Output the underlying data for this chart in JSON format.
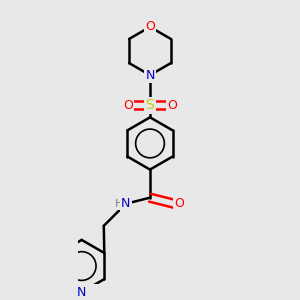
{
  "background_color": "#e8e8e8",
  "atom_colors": {
    "C": "#000000",
    "N": "#0000cd",
    "O": "#ff0000",
    "S": "#cccc00",
    "H": "#708090"
  },
  "bond_color": "#000000",
  "bond_width": 1.8,
  "figsize": [
    3.0,
    3.0
  ],
  "dpi": 100
}
